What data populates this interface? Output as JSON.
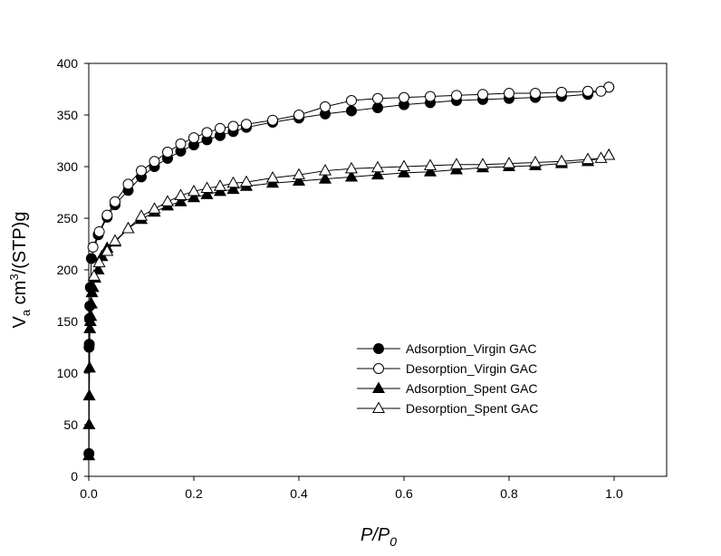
{
  "chart_data": {
    "type": "line",
    "xlabel": {
      "main": "P/P",
      "sub": "0"
    },
    "ylabel": {
      "v": "V",
      "sub": "a",
      "mid": " cm",
      "sup": "3",
      "rest": "/(STP)g"
    },
    "xlim": [
      0,
      1.1
    ],
    "ylim": [
      0,
      400
    ],
    "xticks": [
      0.0,
      0.2,
      0.4,
      0.6,
      0.8,
      1.0
    ],
    "xtick_labels": [
      "0.0",
      "0.2",
      "0.4",
      "0.6",
      "0.8",
      "1.0"
    ],
    "yticks": [
      0,
      50,
      100,
      150,
      200,
      250,
      300,
      350,
      400
    ],
    "ytick_labels": [
      "0",
      "50",
      "100",
      "150",
      "200",
      "250",
      "300",
      "350",
      "400"
    ],
    "grid": false,
    "legend_position": "center-right",
    "series": [
      {
        "name": "Adsorption_Virgin GAC",
        "marker": "circle",
        "filled": true,
        "x": [
          0.0003,
          0.0006,
          0.001,
          0.0015,
          0.002,
          0.003,
          0.005,
          0.018,
          0.035,
          0.05,
          0.075,
          0.1,
          0.125,
          0.15,
          0.175,
          0.2,
          0.225,
          0.25,
          0.275,
          0.3,
          0.35,
          0.4,
          0.45,
          0.5,
          0.55,
          0.6,
          0.65,
          0.7,
          0.75,
          0.8,
          0.85,
          0.9,
          0.95,
          0.99
        ],
        "y": [
          22,
          125,
          128,
          153,
          165,
          183,
          211,
          234,
          251,
          263,
          277,
          290,
          300,
          308,
          315,
          321,
          326,
          330,
          334,
          338,
          343,
          347,
          351,
          354,
          357,
          360,
          362,
          364,
          365,
          366,
          367,
          368,
          370,
          377
        ]
      },
      {
        "name": "Desorption_Virgin GAC",
        "marker": "circle",
        "filled": false,
        "x": [
          0.99,
          0.975,
          0.95,
          0.9,
          0.85,
          0.8,
          0.75,
          0.7,
          0.65,
          0.6,
          0.55,
          0.5,
          0.45,
          0.4,
          0.35,
          0.3,
          0.275,
          0.25,
          0.225,
          0.2,
          0.175,
          0.15,
          0.125,
          0.1,
          0.075,
          0.05,
          0.035,
          0.02,
          0.008
        ],
        "y": [
          377,
          373,
          373,
          372,
          371,
          371,
          370,
          369,
          368,
          367,
          366,
          364,
          358,
          350,
          345,
          341,
          339,
          337,
          333,
          328,
          322,
          314,
          305,
          296,
          283,
          266,
          253,
          237,
          222
        ]
      },
      {
        "name": "Adsorption_Spent GAC",
        "marker": "triangle",
        "filled": true,
        "x": [
          0.0003,
          0.0006,
          0.001,
          0.0015,
          0.002,
          0.003,
          0.004,
          0.005,
          0.006,
          0.008,
          0.012,
          0.018,
          0.025,
          0.035,
          0.05,
          0.075,
          0.1,
          0.125,
          0.15,
          0.175,
          0.2,
          0.225,
          0.25,
          0.275,
          0.3,
          0.35,
          0.4,
          0.45,
          0.5,
          0.55,
          0.6,
          0.65,
          0.7,
          0.75,
          0.8,
          0.85,
          0.9,
          0.95,
          0.99
        ],
        "y": [
          20,
          50,
          78,
          105,
          143,
          150,
          155,
          167,
          178,
          183,
          192,
          200,
          213,
          221,
          227,
          240,
          249,
          256,
          262,
          266,
          270,
          273,
          276,
          278,
          281,
          284,
          286,
          288,
          290,
          292,
          294,
          295,
          297,
          299,
          300,
          301,
          303,
          305,
          311
        ]
      },
      {
        "name": "Desorption_Spent GAC",
        "marker": "triangle",
        "filled": false,
        "x": [
          0.99,
          0.975,
          0.95,
          0.9,
          0.85,
          0.8,
          0.75,
          0.7,
          0.65,
          0.6,
          0.55,
          0.5,
          0.45,
          0.4,
          0.35,
          0.3,
          0.275,
          0.25,
          0.225,
          0.2,
          0.175,
          0.15,
          0.125,
          0.1,
          0.075,
          0.05,
          0.035,
          0.02,
          0.01
        ],
        "y": [
          311,
          308,
          307,
          305,
          304,
          303,
          302,
          302,
          301,
          300,
          299,
          298,
          296,
          292,
          289,
          285,
          284,
          281,
          279,
          276,
          272,
          266,
          259,
          252,
          240,
          228,
          218,
          207,
          194
        ]
      }
    ]
  }
}
